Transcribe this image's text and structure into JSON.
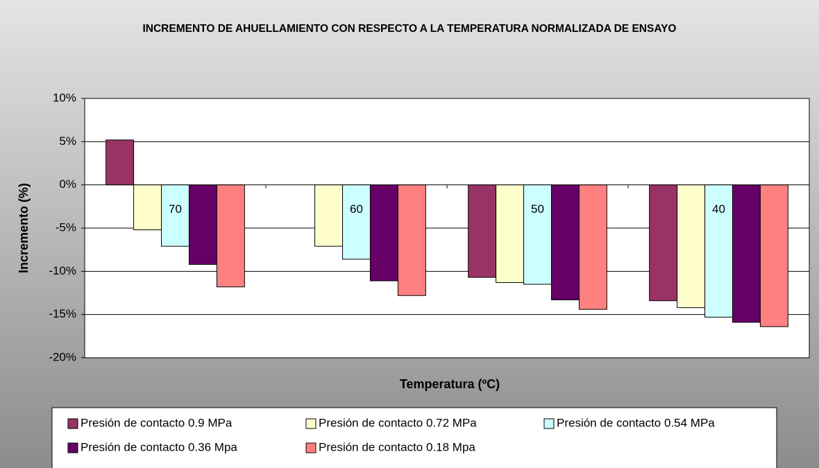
{
  "chart_data": {
    "type": "bar",
    "title": "INCREMENTO DE AHUELLAMIENTO CON RESPECTO A LA TEMPERATURA NORMALIZADA DE ENSAYO",
    "xlabel": "Temperatura (ºC)",
    "ylabel": "Incremento (%)",
    "categories": [
      "70",
      "60",
      "50",
      "40"
    ],
    "series": [
      {
        "name": "Presión de contacto 0.9 MPa",
        "color": "#993366",
        "values": [
          5.2,
          null,
          -10.7,
          -13.4
        ]
      },
      {
        "name": "Presión de contacto 0.72 MPa",
        "color": "#FFFFCC",
        "values": [
          -5.2,
          -7.1,
          -11.3,
          -14.2
        ]
      },
      {
        "name": "Presión de contacto 0.54 MPa",
        "color": "#CCFFFF",
        "values": [
          -7.1,
          -8.6,
          -11.5,
          -15.3
        ]
      },
      {
        "name": "Presión de contacto 0.36 Mpa",
        "color": "#660066",
        "values": [
          -9.2,
          -11.1,
          -13.3,
          -15.9
        ]
      },
      {
        "name": "Presión de contacto 0.18 Mpa",
        "color": "#FF8080",
        "values": [
          -11.8,
          -12.8,
          -14.4,
          -16.4
        ]
      }
    ],
    "ylim": [
      -20,
      10
    ],
    "yticks": [
      {
        "value": -20,
        "label": "-20%"
      },
      {
        "value": -15,
        "label": "-15%"
      },
      {
        "value": -10,
        "label": "-10%"
      },
      {
        "value": -5,
        "label": "-5%"
      },
      {
        "value": 0,
        "label": "0%"
      },
      {
        "value": 5,
        "label": "5%"
      },
      {
        "value": 10,
        "label": "10%"
      }
    ],
    "grid": true,
    "legend": "bottom"
  }
}
